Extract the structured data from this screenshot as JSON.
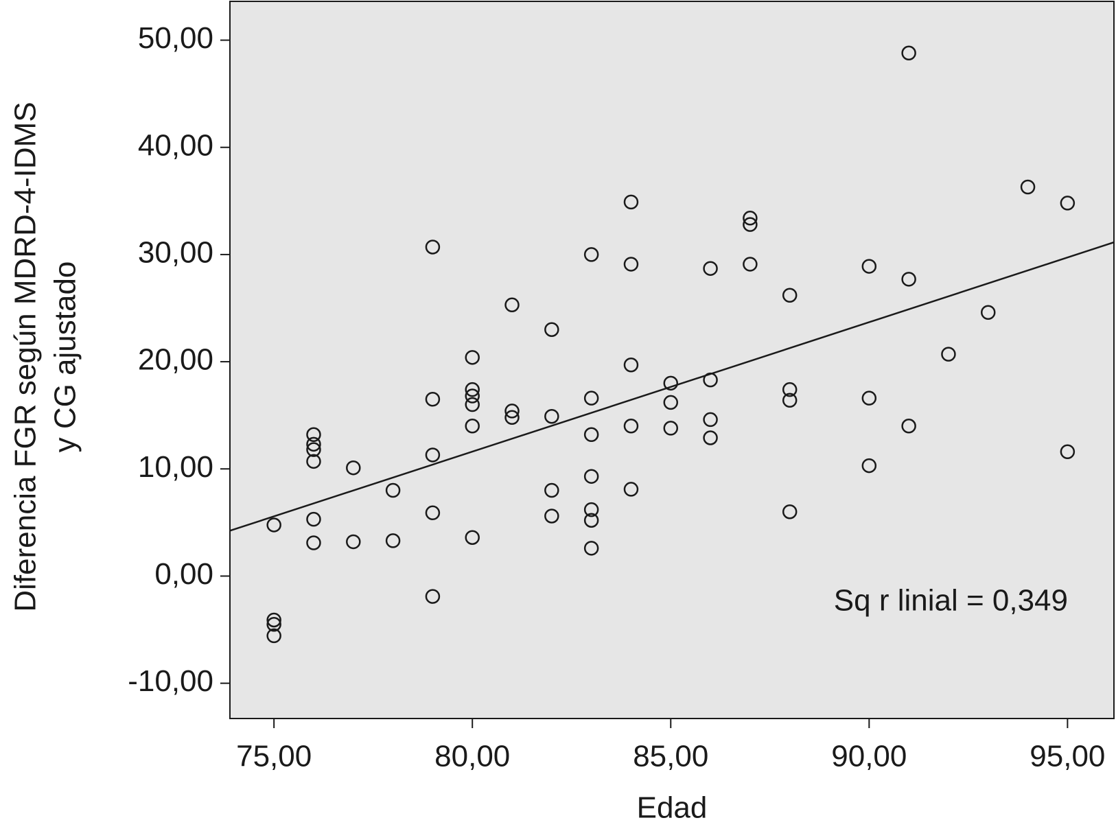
{
  "chart_data": {
    "type": "scatter",
    "x_label": "Edad",
    "y_label": [
      "Diferencia FGR según MDRD-4-IDMS",
      "y CG ajustado"
    ],
    "annotation": "Sq r linial = 0,349",
    "background": "#e6e6e6",
    "color": "#1a1a1a",
    "xlim": [
      73.89,
      96.17
    ],
    "ylim": [
      -13.29,
      53.62
    ],
    "xticks": [
      {
        "value": 75,
        "label": "75,00"
      },
      {
        "value": 80,
        "label": "80,00"
      },
      {
        "value": 85,
        "label": "85,00"
      },
      {
        "value": 90,
        "label": "90,00"
      },
      {
        "value": 95,
        "label": "95,00"
      }
    ],
    "yticks": [
      {
        "value": -10,
        "label": "-10,00"
      },
      {
        "value": 0,
        "label": "0,00"
      },
      {
        "value": 10,
        "label": "10,00"
      },
      {
        "value": 20,
        "label": "20,00"
      },
      {
        "value": 30,
        "label": "30,00"
      },
      {
        "value": 40,
        "label": "40,00"
      },
      {
        "value": 50,
        "label": "50,00"
      }
    ],
    "x": [
      75,
      75,
      75,
      75,
      76,
      76,
      76,
      76,
      76,
      76,
      77,
      77,
      78,
      78,
      79,
      79,
      79,
      79,
      79,
      80,
      80,
      80,
      80,
      80,
      80,
      81,
      81,
      81,
      82,
      82,
      82,
      82,
      83,
      83,
      83,
      83,
      83,
      83,
      83,
      84,
      84,
      84,
      84,
      84,
      85,
      85,
      85,
      86,
      86,
      86,
      86,
      87,
      87,
      87,
      88,
      88,
      88,
      88,
      90,
      90,
      90,
      91,
      91,
      91,
      92,
      93,
      94,
      95,
      95
    ],
    "y": [
      4.77,
      -4.1,
      -4.5,
      -5.57,
      13.2,
      12.3,
      11.8,
      10.7,
      5.3,
      3.1,
      10.1,
      3.2,
      8.0,
      3.3,
      30.7,
      16.5,
      11.3,
      5.9,
      -1.9,
      20.4,
      17.4,
      16.8,
      16.0,
      14.0,
      3.6,
      25.3,
      15.4,
      14.8,
      23.0,
      14.9,
      8.0,
      5.6,
      30.0,
      16.6,
      13.2,
      9.3,
      6.2,
      5.2,
      2.6,
      34.9,
      29.1,
      19.7,
      14.0,
      8.1,
      18.0,
      16.2,
      13.8,
      28.7,
      18.3,
      14.6,
      12.9,
      33.4,
      32.8,
      29.1,
      26.2,
      17.4,
      16.4,
      6.0,
      28.9,
      16.6,
      10.3,
      48.8,
      27.7,
      14.0,
      20.7,
      24.6,
      36.3,
      34.8,
      11.6
    ],
    "trendline": {
      "x": [
        73.89,
        96.17
      ],
      "y": [
        4.23,
        31.14
      ]
    }
  }
}
